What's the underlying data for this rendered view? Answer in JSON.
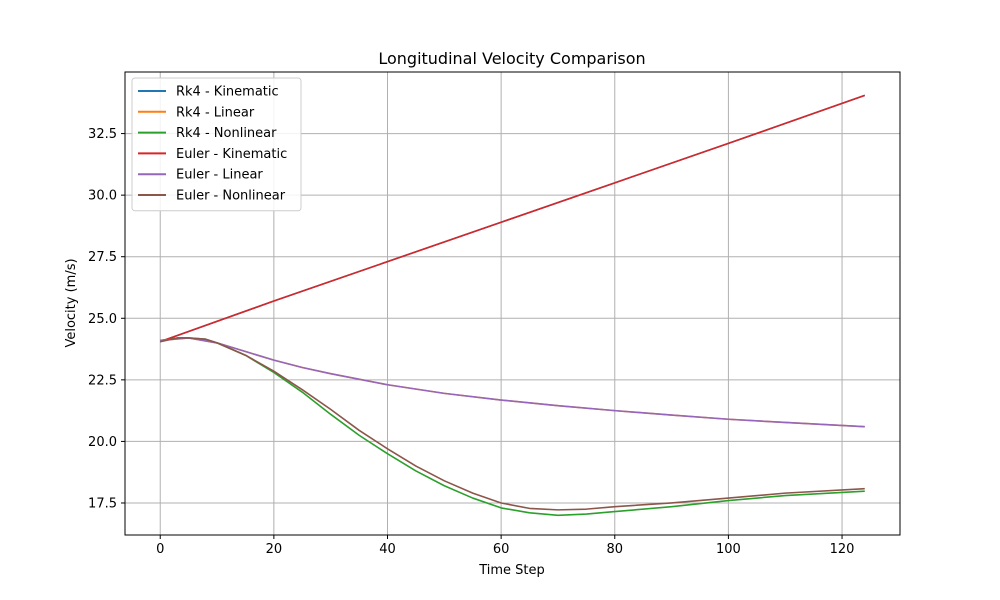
{
  "chart_data": {
    "type": "line",
    "title": "Longitudinal Velocity Comparison",
    "xlabel": "Time Step",
    "ylabel": "Velocity (m/s)",
    "xlim": [
      -6.2,
      130.2
    ],
    "ylim": [
      16.2,
      35.0
    ],
    "xticks": [
      0,
      20,
      40,
      60,
      80,
      100,
      120
    ],
    "yticks": [
      17.5,
      20.0,
      22.5,
      25.0,
      27.5,
      30.0,
      32.5
    ],
    "xtick_labels": [
      "0",
      "20",
      "40",
      "60",
      "80",
      "100",
      "120"
    ],
    "ytick_labels": [
      "17.5",
      "20.0",
      "22.5",
      "25.0",
      "27.5",
      "30.0",
      "32.5"
    ],
    "grid": true,
    "legend_position": "top-left",
    "series": [
      {
        "name": "Rk4 - Kinematic",
        "color": "#1f77b4",
        "x": [
          0,
          20,
          40,
          60,
          80,
          100,
          124
        ],
        "y": [
          24.05,
          25.7,
          27.3,
          28.9,
          30.5,
          32.1,
          34.05
        ]
      },
      {
        "name": "Rk4 - Linear",
        "color": "#ff7f0e",
        "x": [
          0,
          5,
          10,
          15,
          20,
          25,
          30,
          40,
          50,
          60,
          70,
          80,
          90,
          100,
          110,
          124
        ],
        "y": [
          24.1,
          24.2,
          24.0,
          23.65,
          23.3,
          23.0,
          22.75,
          22.3,
          21.95,
          21.68,
          21.45,
          21.25,
          21.07,
          20.9,
          20.77,
          20.6
        ]
      },
      {
        "name": "Rk4 - Nonlinear",
        "color": "#2ca02c",
        "x": [
          0,
          3,
          5,
          8,
          10,
          15,
          20,
          25,
          30,
          35,
          40,
          45,
          50,
          55,
          60,
          65,
          70,
          75,
          80,
          90,
          100,
          110,
          124
        ],
        "y": [
          24.1,
          24.2,
          24.2,
          24.15,
          24.0,
          23.5,
          22.8,
          22.0,
          21.1,
          20.25,
          19.5,
          18.8,
          18.2,
          17.7,
          17.3,
          17.1,
          17.0,
          17.05,
          17.15,
          17.35,
          17.6,
          17.8,
          17.98
        ]
      },
      {
        "name": "Euler - Kinematic",
        "color": "#d62728",
        "x": [
          0,
          20,
          40,
          60,
          80,
          100,
          124
        ],
        "y": [
          24.05,
          25.7,
          27.3,
          28.9,
          30.5,
          32.1,
          34.05
        ]
      },
      {
        "name": "Euler - Linear",
        "color": "#9467bd",
        "x": [
          0,
          5,
          10,
          15,
          20,
          25,
          30,
          40,
          50,
          60,
          70,
          80,
          90,
          100,
          110,
          124
        ],
        "y": [
          24.1,
          24.2,
          24.0,
          23.65,
          23.3,
          23.0,
          22.75,
          22.3,
          21.95,
          21.68,
          21.45,
          21.25,
          21.07,
          20.9,
          20.77,
          20.6
        ]
      },
      {
        "name": "Euler - Nonlinear",
        "color": "#8c564b",
        "x": [
          0,
          3,
          5,
          8,
          10,
          15,
          20,
          25,
          30,
          35,
          40,
          45,
          50,
          55,
          60,
          65,
          70,
          75,
          80,
          90,
          100,
          110,
          124
        ],
        "y": [
          24.05,
          24.2,
          24.2,
          24.15,
          24.0,
          23.5,
          22.85,
          22.1,
          21.3,
          20.45,
          19.7,
          19.0,
          18.4,
          17.9,
          17.5,
          17.28,
          17.22,
          17.25,
          17.35,
          17.5,
          17.7,
          17.9,
          18.08
        ]
      }
    ]
  }
}
